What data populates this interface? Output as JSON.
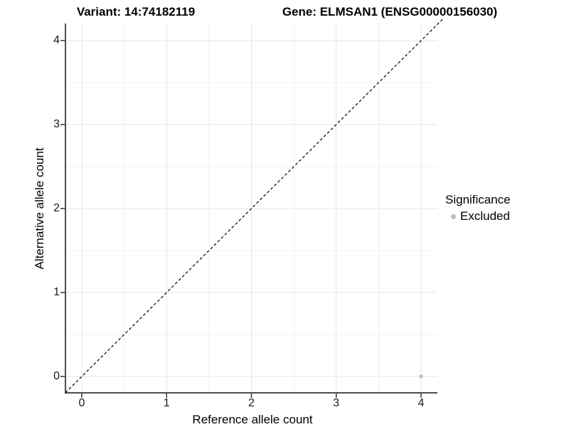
{
  "titles": {
    "variant": "Variant: 14:74182119",
    "gene": "Gene: ELMSAN1 (ENSG00000156030)"
  },
  "chart_data": {
    "type": "scatter",
    "title_left": "Variant: 14:74182119",
    "title_right": "Gene: ELMSAN1 (ENSG00000156030)",
    "xlabel": "Reference allele count",
    "ylabel": "Alternative allele count",
    "xlim": [
      -0.2,
      4.2
    ],
    "ylim": [
      -0.2,
      4.2
    ],
    "xticks": [
      0,
      1,
      2,
      3,
      4
    ],
    "yticks": [
      0,
      1,
      2,
      3,
      4
    ],
    "grid": "major and minor gridlines on",
    "legend": {
      "position": "right",
      "title": "Significance",
      "items": [
        {
          "label": "Excluded",
          "color": "#bdbdbd"
        }
      ]
    },
    "series": [
      {
        "name": "Excluded",
        "color": "#bdbdbd",
        "points": [
          {
            "x": 4,
            "y": 0
          }
        ]
      }
    ],
    "reference_line": {
      "type": "identity y=x",
      "style": "dashed",
      "color": "#000000"
    }
  },
  "colors": {
    "background": "#ffffff",
    "grid_major": "#e4e4e4",
    "grid_minor": "#f1f1f1",
    "axis_line": "#4d4d4d",
    "tick_mark": "#333333",
    "tick_text": "#1a1a1a",
    "point": "#bdbdbd",
    "ref_line": "#000000"
  }
}
